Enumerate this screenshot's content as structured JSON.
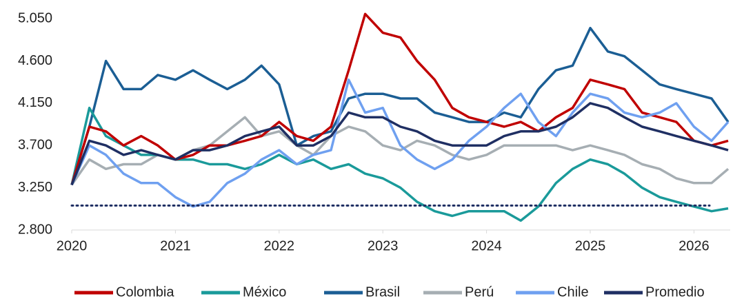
{
  "chart_data": {
    "type": "line",
    "x": [
      2020,
      2020.17,
      2020.33,
      2020.5,
      2020.67,
      2020.83,
      2021,
      2021.17,
      2021.33,
      2021.5,
      2021.67,
      2021.83,
      2022,
      2022.17,
      2022.33,
      2022.5,
      2022.67,
      2022.83,
      2023,
      2023.17,
      2023.33,
      2023.5,
      2023.67,
      2023.83,
      2024,
      2024.17,
      2024.33,
      2024.5,
      2024.67,
      2024.83,
      2025,
      2025.17,
      2025.33,
      2025.5,
      2025.67,
      2025.83,
      2026,
      2026.17,
      2026.33
    ],
    "series": [
      {
        "name": "Colombia",
        "color": "#c00000",
        "values": [
          3280,
          3900,
          3850,
          3700,
          3800,
          3700,
          3550,
          3600,
          3700,
          3700,
          3750,
          3800,
          3950,
          3800,
          3750,
          3900,
          4500,
          5100,
          4900,
          4850,
          4600,
          4400,
          4100,
          4000,
          3950,
          3900,
          3950,
          3850,
          4000,
          4100,
          4400,
          4350,
          4300,
          4050,
          4000,
          3950,
          3750,
          3700,
          3750
        ]
      },
      {
        "name": "México",
        "color": "#1a9a9a",
        "values": [
          3280,
          4100,
          3800,
          3700,
          3600,
          3600,
          3550,
          3550,
          3500,
          3500,
          3450,
          3500,
          3600,
          3500,
          3550,
          3450,
          3500,
          3400,
          3350,
          3250,
          3100,
          3000,
          2950,
          3000,
          3000,
          3000,
          2900,
          3050,
          3300,
          3450,
          3550,
          3500,
          3400,
          3250,
          3150,
          3100,
          3050,
          3000,
          3030
        ]
      },
      {
        "name": "Brasil",
        "color": "#1b5e94",
        "values": [
          3280,
          3900,
          4600,
          4300,
          4300,
          4450,
          4400,
          4500,
          4400,
          4300,
          4400,
          4550,
          4350,
          3700,
          3800,
          3850,
          4200,
          4250,
          4250,
          4200,
          4200,
          4050,
          4000,
          3950,
          3950,
          4050,
          4000,
          4300,
          4500,
          4550,
          4950,
          4700,
          4650,
          4500,
          4350,
          4300,
          4250,
          4200,
          3950
        ]
      },
      {
        "name": "Perú",
        "color": "#a6aeb3",
        "values": [
          3280,
          3550,
          3450,
          3500,
          3500,
          3600,
          3550,
          3650,
          3700,
          3850,
          4000,
          3800,
          3850,
          3700,
          3600,
          3800,
          3900,
          3850,
          3700,
          3650,
          3750,
          3700,
          3600,
          3550,
          3600,
          3700,
          3700,
          3700,
          3700,
          3650,
          3700,
          3650,
          3600,
          3500,
          3450,
          3350,
          3300,
          3300,
          3450
        ]
      },
      {
        "name": "Chile",
        "color": "#6fa0f0",
        "values": [
          3280,
          3700,
          3600,
          3400,
          3300,
          3300,
          3150,
          3050,
          3100,
          3300,
          3400,
          3550,
          3650,
          3500,
          3600,
          3650,
          4400,
          4050,
          4100,
          3700,
          3550,
          3450,
          3550,
          3750,
          3900,
          4100,
          4250,
          3950,
          3800,
          4050,
          4250,
          4200,
          4050,
          4000,
          4050,
          4150,
          3900,
          3750,
          3950
        ]
      },
      {
        "name": "Promedio",
        "color": "#1f2f63",
        "values": [
          3280,
          3750,
          3700,
          3600,
          3650,
          3600,
          3550,
          3650,
          3650,
          3700,
          3800,
          3850,
          3900,
          3700,
          3700,
          3800,
          4050,
          4000,
          4000,
          3900,
          3850,
          3750,
          3700,
          3700,
          3700,
          3800,
          3850,
          3850,
          3900,
          4000,
          4150,
          4100,
          4000,
          3900,
          3850,
          3800,
          3750,
          3700,
          3650
        ]
      }
    ],
    "reference_line": {
      "value": 3060,
      "color": "#1f2f63"
    },
    "xlim": [
      2020,
      2026.35
    ],
    "xticks": [
      2020,
      2021,
      2022,
      2023,
      2024,
      2025,
      2026
    ],
    "ylim": [
      2800,
      5190
    ],
    "yticks": [
      {
        "value": 2800,
        "label": "2.800"
      },
      {
        "value": 3250,
        "label": "3.250"
      },
      {
        "value": 3700,
        "label": "3.700"
      },
      {
        "value": 4150,
        "label": "4.150"
      },
      {
        "value": 4600,
        "label": "4.600"
      },
      {
        "value": 5050,
        "label": "5.050"
      }
    ],
    "grid": false,
    "legend": "bottom"
  }
}
